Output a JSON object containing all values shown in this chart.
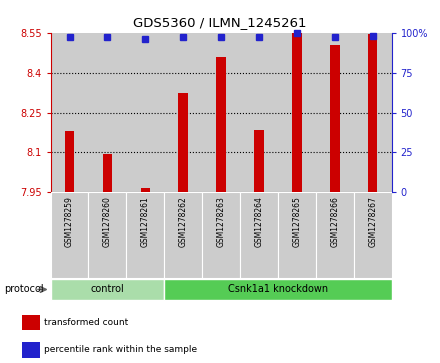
{
  "title": "GDS5360 / ILMN_1245261",
  "samples": [
    "GSM1278259",
    "GSM1278260",
    "GSM1278261",
    "GSM1278262",
    "GSM1278263",
    "GSM1278264",
    "GSM1278265",
    "GSM1278266",
    "GSM1278267"
  ],
  "bar_values": [
    8.18,
    8.095,
    7.965,
    8.325,
    8.46,
    8.185,
    8.55,
    8.505,
    8.545
  ],
  "percentile_values": [
    97,
    97,
    96,
    97,
    97,
    97,
    100,
    97,
    98
  ],
  "ylim_left": [
    7.95,
    8.55
  ],
  "ylim_right": [
    0,
    100
  ],
  "yticks_left": [
    7.95,
    8.1,
    8.25,
    8.4,
    8.55
  ],
  "ytick_labels_left": [
    "7.95",
    "8.1",
    "8.25",
    "8.4",
    "8.55"
  ],
  "yticks_right": [
    0,
    25,
    50,
    75,
    100
  ],
  "ytick_labels_right": [
    "0",
    "25",
    "50",
    "75",
    "100%"
  ],
  "bar_color": "#cc0000",
  "dot_color": "#2222cc",
  "grid_color": "#000000",
  "axis_left_color": "#cc0000",
  "axis_right_color": "#2222cc",
  "groups": [
    {
      "label": "control",
      "start": 0,
      "end": 3,
      "color": "#aaddaa"
    },
    {
      "label": "Csnk1a1 knockdown",
      "start": 3,
      "end": 9,
      "color": "#55cc55"
    }
  ],
  "protocol_label": "protocol",
  "legend_items": [
    {
      "color": "#cc0000",
      "label": "transformed count"
    },
    {
      "color": "#2222cc",
      "label": "percentile rank within the sample"
    }
  ],
  "col_bg_color": "#cccccc",
  "plot_bg_color": "#ffffff",
  "bar_width": 0.25,
  "dot_size": 30,
  "label_area_color": "#cccccc"
}
